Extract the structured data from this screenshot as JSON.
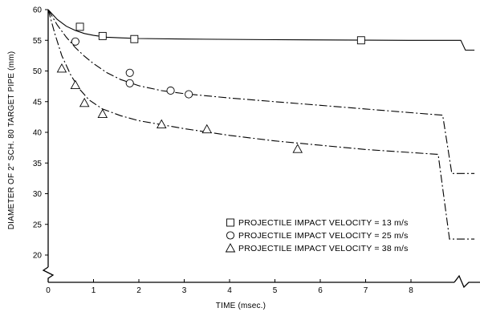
{
  "chart_data": {
    "type": "scatter",
    "title": "",
    "xlabel": "TIME (msec.)",
    "ylabel": "DIAMETER OF 2\" SCH. 80 TARGET PIPE (mm)",
    "xlim": [
      0,
      9.4
    ],
    "ylim": [
      16,
      60
    ],
    "x_ticks": [
      0,
      1,
      2,
      3,
      4,
      5,
      6,
      7,
      8
    ],
    "y_ticks": [
      20,
      25,
      30,
      35,
      40,
      45,
      50,
      55,
      60
    ],
    "grid": false,
    "legend_position": "bottom-right",
    "axis_breaks": [
      "y-axis-lower",
      "x-axis-right"
    ],
    "series": [
      {
        "name": "PROJECTILE IMPACT VELOCITY = 13 m/s",
        "marker": "square",
        "line_style": "solid",
        "points": [
          [
            0.7,
            57.2
          ],
          [
            1.2,
            55.7
          ],
          [
            1.9,
            55.2
          ],
          [
            6.9,
            55.0
          ]
        ],
        "curve": [
          [
            0,
            60
          ],
          [
            0.2,
            58.4
          ],
          [
            0.4,
            57.3
          ],
          [
            0.6,
            56.6
          ],
          [
            0.8,
            56.1
          ],
          [
            1.0,
            55.8
          ],
          [
            1.3,
            55.5
          ],
          [
            1.6,
            55.4
          ],
          [
            2.0,
            55.3
          ],
          [
            3.0,
            55.2
          ],
          [
            5.0,
            55.1
          ],
          [
            8.0,
            55.0
          ],
          [
            9.1,
            55.0
          ],
          [
            9.2,
            53.4
          ],
          [
            9.4,
            53.4
          ]
        ]
      },
      {
        "name": "PROJECTILE IMPACT VELOCITY = 25 m/s",
        "marker": "circle",
        "line_style": "dash-dot",
        "points": [
          [
            0.6,
            54.8
          ],
          [
            1.8,
            49.7
          ],
          [
            1.8,
            48.0
          ],
          [
            2.7,
            46.8
          ],
          [
            3.1,
            46.2
          ]
        ],
        "curve": [
          [
            0,
            60
          ],
          [
            0.2,
            57.5
          ],
          [
            0.4,
            55.5
          ],
          [
            0.6,
            53.8
          ],
          [
            0.8,
            52.4
          ],
          [
            1.0,
            51.2
          ],
          [
            1.3,
            49.7
          ],
          [
            1.6,
            48.6
          ],
          [
            2.0,
            47.6
          ],
          [
            2.5,
            46.8
          ],
          [
            3.0,
            46.3
          ],
          [
            4.0,
            45.6
          ],
          [
            5.0,
            45.0
          ],
          [
            6.0,
            44.4
          ],
          [
            7.0,
            43.8
          ],
          [
            8.0,
            43.2
          ],
          [
            8.7,
            42.8
          ],
          [
            8.9,
            33.3
          ],
          [
            9.4,
            33.3
          ]
        ]
      },
      {
        "name": "PROJECTILE IMPACT VELOCITY = 38 m/s",
        "marker": "triangle",
        "line_style": "dash-dot",
        "points": [
          [
            0.3,
            50.4
          ],
          [
            0.6,
            47.7
          ],
          [
            0.8,
            44.8
          ],
          [
            1.2,
            43.0
          ],
          [
            2.5,
            41.3
          ],
          [
            3.5,
            40.5
          ],
          [
            5.5,
            37.3
          ]
        ],
        "curve": [
          [
            0,
            60
          ],
          [
            0.15,
            56.0
          ],
          [
            0.3,
            52.5
          ],
          [
            0.5,
            49.3
          ],
          [
            0.7,
            47.0
          ],
          [
            0.9,
            45.3
          ],
          [
            1.2,
            43.8
          ],
          [
            1.6,
            42.7
          ],
          [
            2.0,
            41.9
          ],
          [
            3.0,
            40.6
          ],
          [
            4.0,
            39.5
          ],
          [
            5.0,
            38.6
          ],
          [
            6.0,
            37.9
          ],
          [
            7.0,
            37.2
          ],
          [
            8.0,
            36.7
          ],
          [
            8.6,
            36.4
          ],
          [
            8.85,
            22.6
          ],
          [
            9.4,
            22.6
          ]
        ]
      }
    ]
  }
}
